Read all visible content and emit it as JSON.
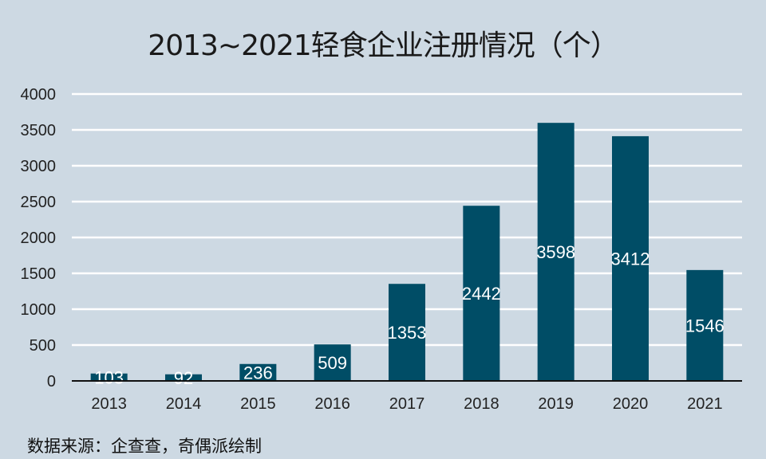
{
  "chart_data": {
    "type": "bar",
    "title": "2013~2021轻食企业注册情况（个）",
    "categories": [
      "2013",
      "2014",
      "2015",
      "2016",
      "2017",
      "2018",
      "2019",
      "2020",
      "2021"
    ],
    "values": [
      103,
      92,
      236,
      509,
      1353,
      2442,
      3598,
      3412,
      1546
    ],
    "ylim": [
      0,
      4000
    ],
    "yticks": [
      0,
      500,
      1000,
      1500,
      2000,
      2500,
      3000,
      3500,
      4000
    ],
    "grid": true,
    "bar_color": "#004d66",
    "label_color": "#ffffff",
    "background": "#cdd9e3",
    "xlabel": "",
    "ylabel": ""
  },
  "source": "数据来源：企查查，奇偶派绘制"
}
